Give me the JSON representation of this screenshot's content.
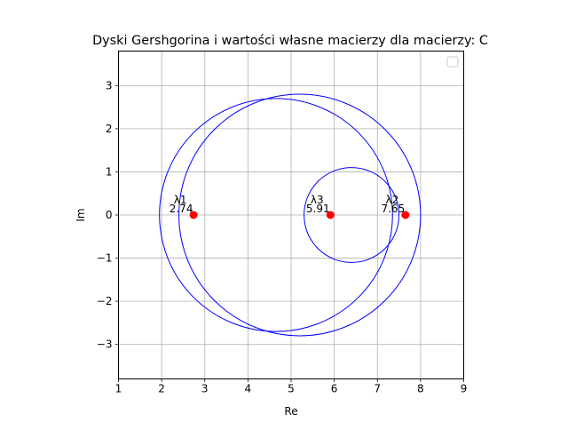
{
  "chart_data": {
    "type": "scatter",
    "title": "Dyski Gershgorina i wartości własne macierzy dla macierzy: C",
    "xlabel": "Re",
    "ylabel": "Im",
    "xlim": [
      1,
      9
    ],
    "ylim": [
      -3.8,
      3.8
    ],
    "xticks": [
      1,
      2,
      3,
      4,
      5,
      6,
      7,
      8,
      9
    ],
    "yticks": [
      -3,
      -2,
      -1,
      0,
      1,
      2,
      3
    ],
    "xtick_labels": [
      "1",
      "2",
      "3",
      "4",
      "5",
      "6",
      "7",
      "8",
      "9"
    ],
    "ytick_labels": [
      "−3",
      "−2",
      "−1",
      "0",
      "1",
      "2",
      "3"
    ],
    "grid": true,
    "legend": "top-right (empty)",
    "disks": [
      {
        "center": [
          4.65,
          0
        ],
        "radius": 2.7
      },
      {
        "center": [
          5.2,
          0
        ],
        "radius": 2.8
      },
      {
        "center": [
          6.4,
          0
        ],
        "radius": 1.1
      }
    ],
    "eigenvalues": [
      {
        "name": "λ1",
        "value_label": "2.74",
        "re": 2.74,
        "im": 0
      },
      {
        "name": "λ2",
        "value_label": "7.65",
        "re": 7.65,
        "im": 0
      },
      {
        "name": "λ3",
        "value_label": "5.91",
        "re": 5.91,
        "im": 0
      }
    ],
    "colors": {
      "disk": "#0000ff",
      "eigenvalue": "#ff0000",
      "grid": "#b0b0b0"
    }
  }
}
